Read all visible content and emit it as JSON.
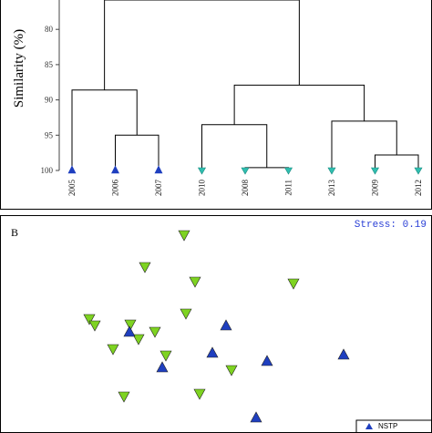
{
  "chart_data": [
    {
      "type": "dendrogram",
      "ylabel": "Similarity (%)",
      "ylim": [
        75,
        100
      ],
      "yticks": [
        80,
        85,
        90,
        95,
        100
      ],
      "leaves": [
        {
          "label": "2005",
          "group": "blue"
        },
        {
          "label": "2006",
          "group": "blue"
        },
        {
          "label": "2007",
          "group": "blue"
        },
        {
          "label": "2010",
          "group": "teal"
        },
        {
          "label": "2008",
          "group": "teal"
        },
        {
          "label": "2011",
          "group": "teal"
        },
        {
          "label": "2013",
          "group": "teal"
        },
        {
          "label": "2009",
          "group": "teal"
        },
        {
          "label": "2012",
          "group": "teal"
        }
      ],
      "merges": [
        {
          "children": [
            "L4",
            "L5"
          ],
          "similarity": 99.6
        },
        {
          "children": [
            "L7",
            "L8"
          ],
          "similarity": 97.8
        },
        {
          "children": [
            "L1",
            "L2"
          ],
          "similarity": 95.0
        },
        {
          "children": [
            "L3",
            "M0"
          ],
          "similarity": 93.5
        },
        {
          "children": [
            "L6",
            "M1"
          ],
          "similarity": 93.0
        },
        {
          "children": [
            "L0",
            "M2"
          ],
          "similarity": 88.6
        },
        {
          "children": [
            "M3",
            "M4"
          ],
          "similarity": 87.9
        },
        {
          "children": [
            "M5",
            "M6"
          ],
          "similarity": 72.0
        }
      ],
      "colors": {
        "blue": "#1f3fbf",
        "teal": "#2fbfb0",
        "line": "#000000"
      }
    },
    {
      "type": "scatter",
      "panel_label": "B",
      "stress_label": "Stress: 0.19",
      "xlim": [
        0,
        474
      ],
      "ylim": [
        0,
        238
      ],
      "series": [
        {
          "marker": "triangle-down",
          "color": "#7ed321",
          "points": [
            {
              "x": 201,
              "y": 21
            },
            {
              "x": 158,
              "y": 56
            },
            {
              "x": 213,
              "y": 72
            },
            {
              "x": 321,
              "y": 74
            },
            {
              "x": 203,
              "y": 107
            },
            {
              "x": 97,
              "y": 113
            },
            {
              "x": 103,
              "y": 120
            },
            {
              "x": 142,
              "y": 119
            },
            {
              "x": 169,
              "y": 127
            },
            {
              "x": 151,
              "y": 135
            },
            {
              "x": 123,
              "y": 146
            },
            {
              "x": 181,
              "y": 153
            },
            {
              "x": 253,
              "y": 169
            },
            {
              "x": 135,
              "y": 198
            },
            {
              "x": 218,
              "y": 195
            }
          ]
        },
        {
          "marker": "triangle-up",
          "color": "#1f3fbf",
          "points": [
            {
              "x": 247,
              "y": 120
            },
            {
              "x": 141,
              "y": 127
            },
            {
              "x": 232,
              "y": 150
            },
            {
              "x": 177,
              "y": 166
            },
            {
              "x": 292,
              "y": 159
            },
            {
              "x": 376,
              "y": 152
            },
            {
              "x": 280,
              "y": 221
            }
          ]
        }
      ],
      "legend": {
        "position": "bottom-right",
        "entries": [
          {
            "label": "NSTP",
            "marker": "triangle-up",
            "color": "#1f3fbf"
          }
        ]
      }
    }
  ]
}
